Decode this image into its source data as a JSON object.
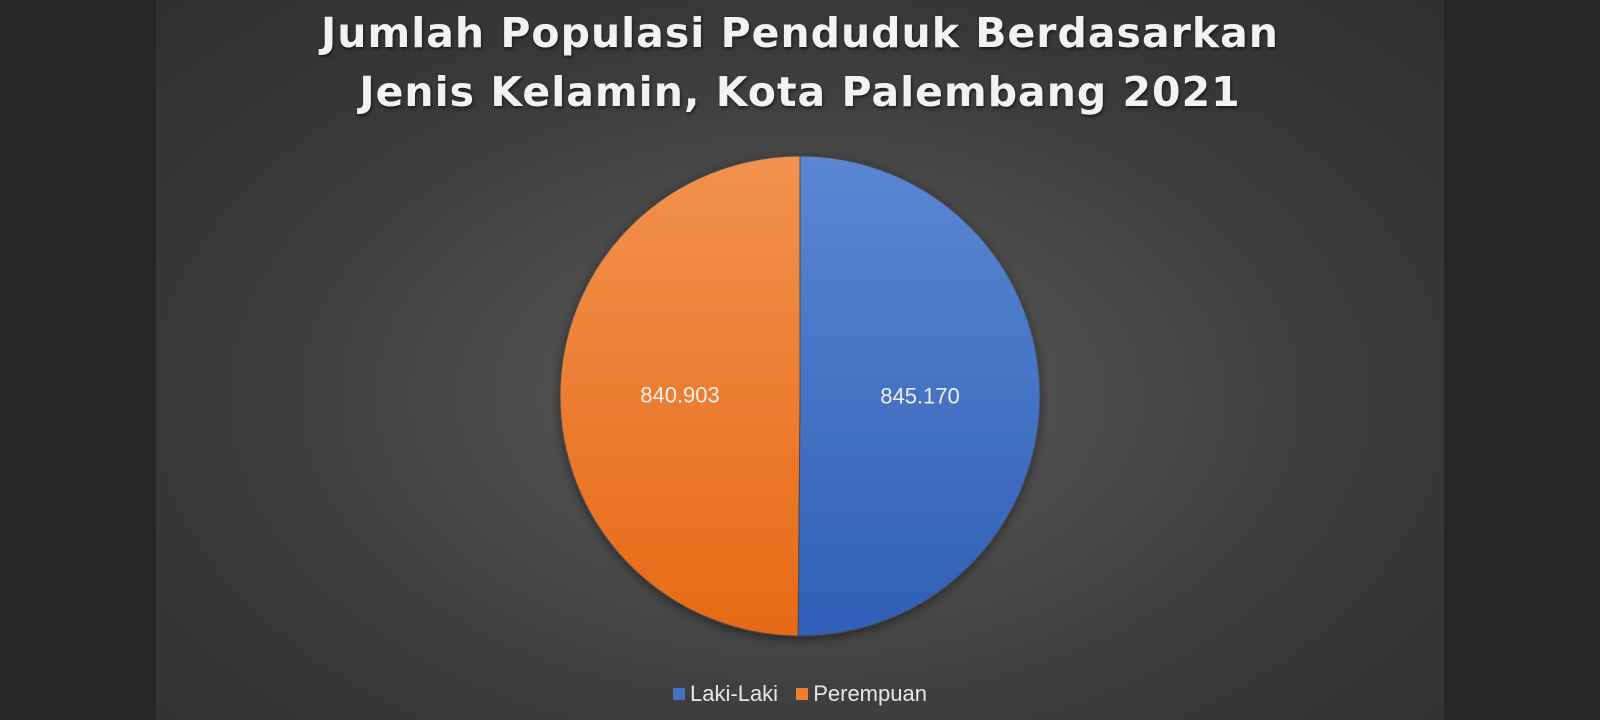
{
  "chart_data": {
    "type": "pie",
    "title": "Jumlah Populasi Penduduk Berdasarkan Jenis Kelamin, Kota Palembang 2021",
    "title_lines": [
      "Jumlah Populasi Penduduk Berdasarkan",
      "Jenis Kelamin, Kota Palembang 2021"
    ],
    "slices": [
      {
        "name": "Laki-Laki",
        "value": 845170,
        "label": "845.170",
        "color": "#4472c4"
      },
      {
        "name": "Perempuan",
        "value": 840903,
        "label": "840.903",
        "color": "#ed7d31"
      }
    ],
    "start_angle_deg": 0,
    "direction": "clockwise",
    "legend_position": "bottom",
    "background_color": "#404040"
  }
}
